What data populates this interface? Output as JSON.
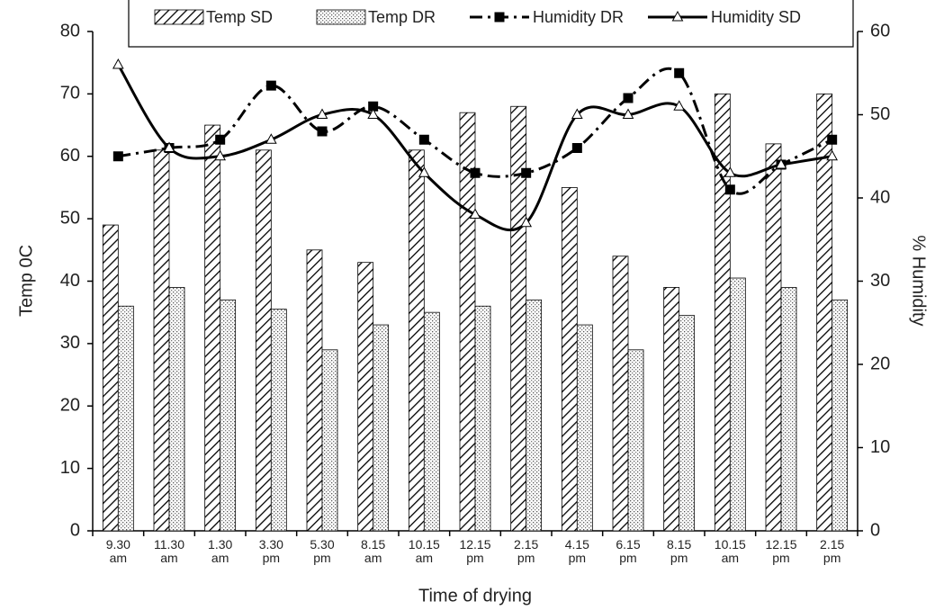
{
  "chart_data": {
    "type": "bar",
    "categories": [
      "9.30\nam",
      "11.30\nam",
      "1.30\nam",
      "3.30\npm",
      "5.30\npm",
      "8.15\nam",
      "10.15\nam",
      "12.15\npm",
      "2.15\npm",
      "4.15\npm",
      "6.15\npm",
      "8.15\npm",
      "10.15\nam",
      "12.15\npm",
      "2.15\npm"
    ],
    "series": [
      {
        "name": "Temp SD",
        "type": "bar",
        "pattern": "hatch",
        "color": "#000000",
        "values": [
          49,
          61,
          65,
          61,
          45,
          43,
          61,
          67,
          68,
          55,
          44,
          39,
          70,
          62,
          70
        ]
      },
      {
        "name": "Temp DR",
        "type": "bar",
        "pattern": "dots",
        "color": "#000000",
        "values": [
          36,
          39,
          37,
          35.5,
          29,
          33,
          35,
          36,
          37,
          33,
          29,
          34.5,
          40.5,
          39,
          37
        ]
      },
      {
        "name": "Humidity DR",
        "type": "line",
        "axis": "y2",
        "marker": "square",
        "line_style": "dash-dot",
        "color": "#000000",
        "values": [
          45,
          46,
          47,
          53.5,
          48,
          51,
          47,
          43,
          43,
          46,
          52,
          55,
          41,
          44,
          47
        ]
      },
      {
        "name": "Humidity SD",
        "type": "line",
        "axis": "y2",
        "marker": "triangle",
        "line_style": "solid",
        "color": "#000000",
        "values": [
          56,
          46,
          45,
          47,
          50,
          50,
          43,
          38,
          37,
          50,
          50,
          51,
          43,
          44,
          45
        ]
      }
    ],
    "ylabel": "Temp 0C",
    "y2label": "% Humidity",
    "xlabel": "Time of drying",
    "ylim": [
      0,
      80
    ],
    "yticks": [
      0,
      10,
      20,
      30,
      40,
      50,
      60,
      70,
      80
    ],
    "y2lim": [
      0,
      60
    ],
    "y2ticks": [
      0,
      10,
      20,
      30,
      40,
      50,
      60
    ],
    "legend": "top"
  }
}
